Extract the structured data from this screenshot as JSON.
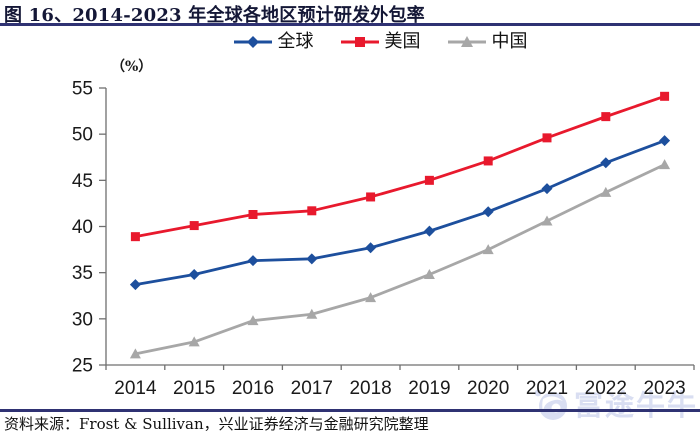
{
  "header": {
    "title": "图 16、2014-2023 年全球各地区预计研发外包率"
  },
  "footer": {
    "source": "资料来源：Frost & Sullivan，兴业证券经济与金融研究院整理"
  },
  "watermark": {
    "text": "富途牛牛"
  },
  "colors": {
    "rule_navy": "#2f3273",
    "axis_gray": "#6f6f6f",
    "tick_label": "#1a1a1a",
    "global_blue": "#1d4f9d",
    "us_red": "#e8192d",
    "china_gray": "#a7a7a7",
    "watermark_blue": "#d9def2"
  },
  "chart_data": {
    "type": "line",
    "title": "2014-2023 年全球各地区预计研发外包率",
    "unit_label": "（%）",
    "categories": [
      "2014",
      "2015",
      "2016",
      "2017",
      "2018",
      "2019",
      "2020",
      "2021",
      "2022",
      "2023"
    ],
    "series": [
      {
        "id": "global",
        "name": "全球",
        "marker": "diamond",
        "color": "#1d4f9d",
        "values": [
          33.7,
          34.8,
          36.3,
          36.5,
          37.7,
          39.5,
          41.6,
          44.1,
          46.9,
          49.3
        ]
      },
      {
        "id": "us",
        "name": "美国",
        "marker": "square",
        "color": "#e8192d",
        "values": [
          38.9,
          40.1,
          41.3,
          41.7,
          43.2,
          45.0,
          47.1,
          49.6,
          51.9,
          54.1
        ]
      },
      {
        "id": "china",
        "name": "中国",
        "marker": "triangle",
        "color": "#a7a7a7",
        "values": [
          26.2,
          27.5,
          29.8,
          30.5,
          32.3,
          34.8,
          37.5,
          40.6,
          43.7,
          46.7
        ]
      }
    ],
    "ylim": [
      25,
      55
    ],
    "ytick_step": 5,
    "xlabel": "",
    "ylabel": "（%）",
    "grid": false,
    "legend_position": "top"
  }
}
